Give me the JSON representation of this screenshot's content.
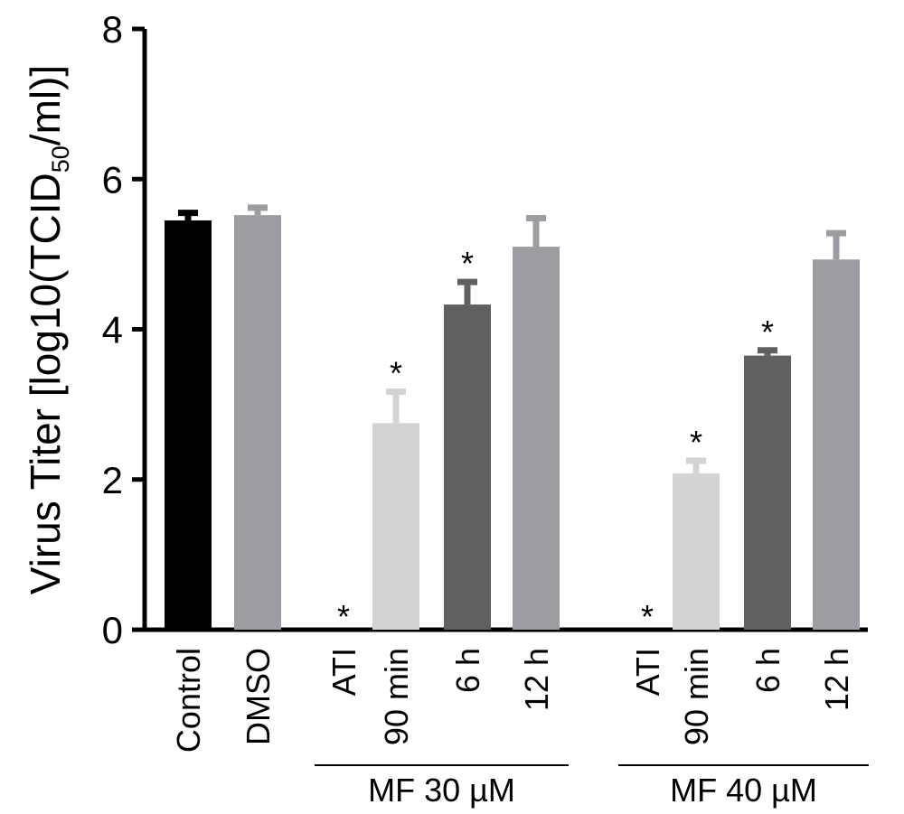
{
  "chart_data": {
    "type": "bar",
    "title": "",
    "ylabel_main": "Virus Titer [log10(TCID",
    "ylabel_sub": "50",
    "ylabel_end": "/ml)]",
    "ylim": [
      0,
      8
    ],
    "yticks": [
      "0",
      "2",
      "4",
      "6",
      "8"
    ],
    "categories": [
      "Control",
      "DMSO",
      "ATI",
      "90 min",
      "6 h",
      "12 h",
      "ATI",
      "90 min",
      "6 h",
      "12 h"
    ],
    "values": [
      5.45,
      5.52,
      0,
      2.75,
      4.33,
      5.1,
      0,
      2.08,
      3.65,
      4.93
    ],
    "errors": [
      0.1,
      0.1,
      0,
      0.42,
      0.3,
      0.38,
      0,
      0.17,
      0.07,
      0.35
    ],
    "significance": [
      "",
      "",
      "*",
      "*",
      "*",
      "",
      "*",
      "*",
      "*",
      ""
    ],
    "colors": [
      "#000000",
      "#9d9ca3",
      "#000000",
      "#d3d3d3",
      "#606060",
      "#9d9ca3",
      "#000000",
      "#d3d3d3",
      "#606060",
      "#9d9ca3"
    ],
    "groups": [
      {
        "label": "MF 30 µM",
        "start": 2,
        "end": 5
      },
      {
        "label": "MF 40 µM",
        "start": 6,
        "end": 9
      }
    ],
    "legend": "none",
    "grid": false
  }
}
